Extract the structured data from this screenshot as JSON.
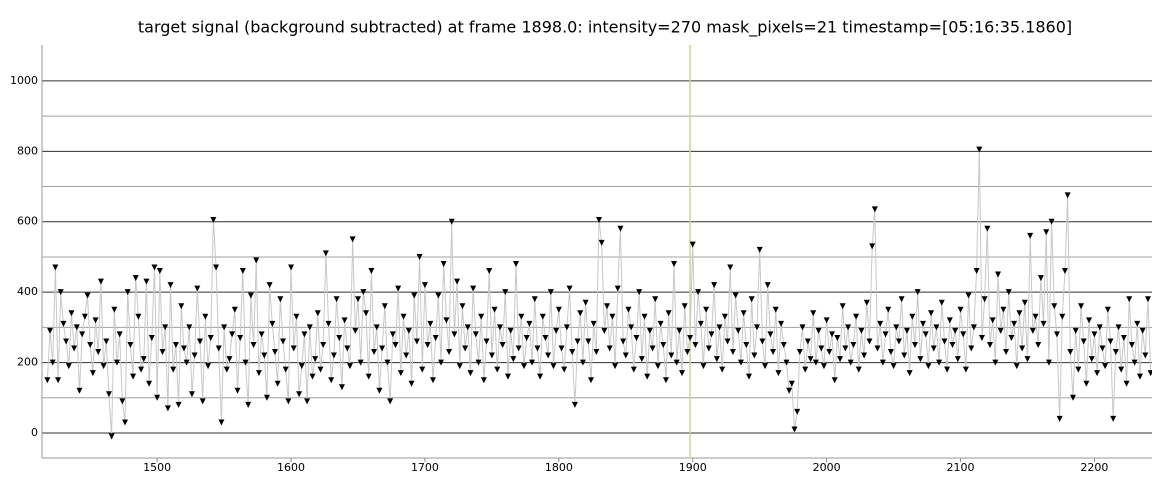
{
  "chart_data": {
    "type": "line",
    "title": "target signal (background subtracted) at frame 1898.0: intensity=270 mask_pixels=21 timestamp=[05:16:35.1860]",
    "x": [
      1418,
      1420,
      1422,
      1424,
      1426,
      1428,
      1430,
      1432,
      1434,
      1436,
      1438,
      1440,
      1442,
      1444,
      1446,
      1448,
      1450,
      1452,
      1454,
      1456,
      1458,
      1460,
      1462,
      1464,
      1466,
      1468,
      1470,
      1472,
      1474,
      1476,
      1478,
      1480,
      1482,
      1484,
      1486,
      1488,
      1490,
      1492,
      1494,
      1496,
      1498,
      1500,
      1502,
      1504,
      1506,
      1508,
      1510,
      1512,
      1514,
      1516,
      1518,
      1520,
      1522,
      1524,
      1526,
      1528,
      1530,
      1532,
      1534,
      1536,
      1538,
      1540,
      1542,
      1544,
      1546,
      1548,
      1550,
      1552,
      1554,
      1556,
      1558,
      1560,
      1562,
      1564,
      1566,
      1568,
      1570,
      1572,
      1574,
      1576,
      1578,
      1580,
      1582,
      1584,
      1586,
      1588,
      1590,
      1592,
      1594,
      1596,
      1598,
      1600,
      1602,
      1604,
      1606,
      1608,
      1610,
      1612,
      1614,
      1616,
      1618,
      1620,
      1622,
      1624,
      1626,
      1628,
      1630,
      1632,
      1634,
      1636,
      1638,
      1640,
      1642,
      1644,
      1646,
      1648,
      1650,
      1652,
      1654,
      1656,
      1658,
      1660,
      1662,
      1664,
      1666,
      1668,
      1670,
      1672,
      1674,
      1676,
      1678,
      1680,
      1682,
      1684,
      1686,
      1688,
      1690,
      1692,
      1694,
      1696,
      1698,
      1700,
      1702,
      1704,
      1706,
      1708,
      1710,
      1712,
      1714,
      1716,
      1718,
      1720,
      1722,
      1724,
      1726,
      1728,
      1730,
      1732,
      1734,
      1736,
      1738,
      1740,
      1742,
      1744,
      1746,
      1748,
      1750,
      1752,
      1754,
      1756,
      1758,
      1760,
      1762,
      1764,
      1766,
      1768,
      1770,
      1772,
      1774,
      1776,
      1778,
      1780,
      1782,
      1784,
      1786,
      1788,
      1790,
      1792,
      1794,
      1796,
      1798,
      1800,
      1802,
      1804,
      1806,
      1808,
      1810,
      1812,
      1814,
      1816,
      1818,
      1820,
      1822,
      1824,
      1826,
      1828,
      1830,
      1832,
      1834,
      1836,
      1838,
      1840,
      1842,
      1844,
      1846,
      1848,
      1850,
      1852,
      1854,
      1856,
      1858,
      1860,
      1862,
      1864,
      1866,
      1868,
      1870,
      1872,
      1874,
      1876,
      1878,
      1880,
      1882,
      1884,
      1886,
      1888,
      1890,
      1892,
      1894,
      1896,
      1898,
      1900,
      1902,
      1904,
      1906,
      1908,
      1910,
      1912,
      1914,
      1916,
      1918,
      1920,
      1922,
      1924,
      1926,
      1928,
      1930,
      1932,
      1934,
      1936,
      1938,
      1940,
      1942,
      1944,
      1946,
      1948,
      1950,
      1952,
      1954,
      1956,
      1958,
      1960,
      1962,
      1964,
      1966,
      1968,
      1970,
      1972,
      1974,
      1976,
      1978,
      1980,
      1982,
      1984,
      1986,
      1988,
      1990,
      1992,
      1994,
      1996,
      1998,
      2000,
      2002,
      2004,
      2006,
      2008,
      2010,
      2012,
      2014,
      2016,
      2018,
      2020,
      2022,
      2024,
      2026,
      2028,
      2030,
      2032,
      2034,
      2036,
      2038,
      2040,
      2042,
      2044,
      2046,
      2048,
      2050,
      2052,
      2054,
      2056,
      2058,
      2060,
      2062,
      2064,
      2066,
      2068,
      2070,
      2072,
      2074,
      2076,
      2078,
      2080,
      2082,
      2084,
      2086,
      2088,
      2090,
      2092,
      2094,
      2096,
      2098,
      2100,
      2102,
      2104,
      2106,
      2108,
      2110,
      2112,
      2114,
      2116,
      2118,
      2120,
      2122,
      2124,
      2126,
      2128,
      2130,
      2132,
      2134,
      2136,
      2138,
      2140,
      2142,
      2144,
      2146,
      2148,
      2150,
      2152,
      2154,
      2156,
      2158,
      2160,
      2162,
      2164,
      2166,
      2168,
      2170,
      2172,
      2174,
      2176,
      2178,
      2180,
      2182,
      2184,
      2186,
      2188,
      2190,
      2192,
      2194,
      2196,
      2198,
      2200,
      2202,
      2204,
      2206,
      2208,
      2210,
      2212,
      2214,
      2216,
      2218,
      2220,
      2222,
      2224,
      2226,
      2228,
      2230,
      2232,
      2234,
      2236,
      2238,
      2240,
      2242
    ],
    "values": [
      150,
      290,
      200,
      470,
      150,
      400,
      310,
      260,
      190,
      340,
      240,
      300,
      120,
      280,
      330,
      390,
      250,
      170,
      320,
      230,
      430,
      190,
      260,
      110,
      -10,
      350,
      200,
      280,
      90,
      30,
      400,
      250,
      160,
      440,
      330,
      180,
      210,
      430,
      140,
      270,
      470,
      100,
      460,
      230,
      300,
      70,
      420,
      180,
      250,
      80,
      360,
      240,
      200,
      300,
      110,
      220,
      410,
      260,
      90,
      330,
      190,
      270,
      605,
      470,
      240,
      30,
      300,
      180,
      210,
      280,
      350,
      120,
      270,
      460,
      200,
      80,
      390,
      250,
      490,
      170,
      280,
      220,
      100,
      420,
      310,
      230,
      140,
      380,
      260,
      180,
      90,
      470,
      240,
      330,
      110,
      190,
      280,
      90,
      300,
      160,
      210,
      340,
      180,
      250,
      510,
      310,
      150,
      220,
      380,
      270,
      130,
      320,
      240,
      190,
      550,
      290,
      380,
      200,
      400,
      340,
      160,
      460,
      230,
      300,
      120,
      240,
      360,
      200,
      90,
      280,
      250,
      410,
      170,
      330,
      220,
      290,
      140,
      390,
      260,
      500,
      180,
      420,
      250,
      310,
      150,
      270,
      390,
      200,
      480,
      320,
      230,
      600,
      280,
      430,
      190,
      360,
      240,
      300,
      170,
      410,
      280,
      200,
      330,
      150,
      260,
      460,
      220,
      350,
      180,
      300,
      250,
      400,
      160,
      290,
      210,
      480,
      240,
      330,
      190,
      270,
      310,
      200,
      380,
      240,
      160,
      330,
      270,
      220,
      400,
      190,
      290,
      350,
      240,
      180,
      300,
      410,
      230,
      80,
      260,
      340,
      200,
      370,
      260,
      150,
      310,
      230,
      605,
      540,
      290,
      360,
      240,
      330,
      190,
      410,
      580,
      260,
      220,
      350,
      300,
      180,
      270,
      400,
      210,
      330,
      160,
      290,
      240,
      380,
      190,
      310,
      250,
      150,
      340,
      220,
      480,
      200,
      290,
      170,
      360,
      230,
      270,
      535,
      250,
      400,
      310,
      190,
      350,
      240,
      280,
      420,
      210,
      300,
      180,
      330,
      260,
      470,
      230,
      390,
      290,
      200,
      340,
      250,
      160,
      380,
      220,
      300,
      520,
      260,
      190,
      420,
      280,
      230,
      350,
      170,
      310,
      250,
      200,
      120,
      140,
      10,
      60,
      230,
      300,
      180,
      260,
      210,
      340,
      200,
      290,
      240,
      190,
      320,
      230,
      280,
      150,
      270,
      210,
      360,
      240,
      300,
      200,
      250,
      330,
      180,
      290,
      220,
      370,
      260,
      530,
      635,
      240,
      310,
      200,
      280,
      350,
      230,
      190,
      300,
      260,
      380,
      220,
      290,
      170,
      330,
      250,
      400,
      210,
      310,
      280,
      190,
      340,
      240,
      300,
      200,
      370,
      260,
      180,
      320,
      250,
      290,
      210,
      350,
      280,
      180,
      390,
      240,
      300,
      460,
      805,
      270,
      380,
      580,
      250,
      320,
      200,
      450,
      290,
      350,
      230,
      400,
      270,
      310,
      190,
      340,
      240,
      370,
      210,
      560,
      290,
      330,
      250,
      440,
      310,
      570,
      200,
      600,
      360,
      280,
      40,
      330,
      460,
      675,
      230,
      100,
      290,
      180,
      360,
      260,
      140,
      320,
      210,
      280,
      170,
      300,
      240,
      190,
      350,
      260,
      40,
      230,
      300,
      180,
      270,
      140,
      380,
      250,
      200,
      310,
      160,
      290,
      220,
      380,
      170
    ],
    "line_color": "#c8c8c8",
    "marker_color": "#000000",
    "xlim": [
      1414,
      2243
    ],
    "xticks": [
      1500,
      1600,
      1700,
      1800,
      1900,
      2000,
      2100,
      2200
    ],
    "ylim": [
      -71,
      1102
    ],
    "yticks": [
      0,
      200,
      400,
      600,
      800,
      1000
    ],
    "yminor": [
      100,
      300,
      500,
      700,
      900
    ],
    "grid": true,
    "cursor_x": 1898,
    "cursor_color": "#c8d890"
  }
}
